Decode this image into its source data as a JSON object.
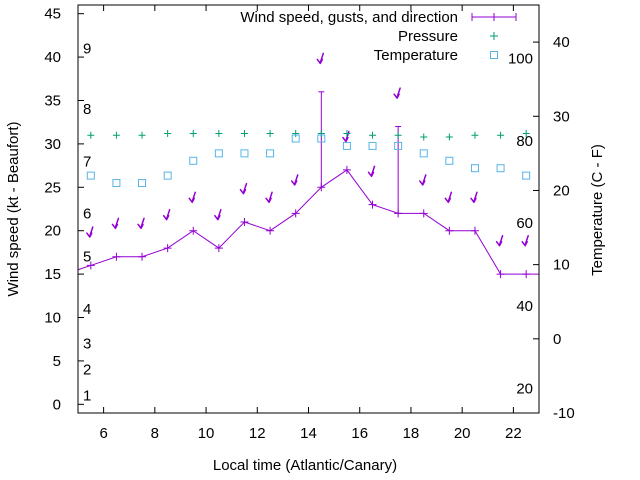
{
  "chart_data": {
    "type": "line",
    "title": "",
    "xlabel": "Local time (Atlantic/Canary)",
    "ylabel": "Wind speed (kt - Beaufort)",
    "y2label": "Temperature (C - F)",
    "xlim": [
      5,
      23
    ],
    "ylim": [
      -1,
      46
    ],
    "y2lim": [
      -10,
      45
    ],
    "xticks": [
      6,
      8,
      10,
      12,
      14,
      16,
      18,
      20,
      22
    ],
    "yticks": [
      0,
      5,
      10,
      15,
      20,
      25,
      30,
      35,
      40,
      45
    ],
    "y2ticks": [
      -10,
      0,
      10,
      20,
      30,
      40
    ],
    "beaufort_labels": [
      {
        "label": "1",
        "kt": 1
      },
      {
        "label": "2",
        "kt": 4
      },
      {
        "label": "3",
        "kt": 7
      },
      {
        "label": "4",
        "kt": 11
      },
      {
        "label": "5",
        "kt": 17
      },
      {
        "label": "6",
        "kt": 22
      },
      {
        "label": "7",
        "kt": 28
      },
      {
        "label": "8",
        "kt": 34
      },
      {
        "label": "9",
        "kt": 41
      }
    ],
    "fahrenheit_labels": [
      {
        "label": "20",
        "c": -6.7
      },
      {
        "label": "40",
        "c": 4.4
      },
      {
        "label": "60",
        "c": 15.6
      },
      {
        "label": "80",
        "c": 26.7
      },
      {
        "label": "100",
        "c": 37.8
      }
    ],
    "legend": [
      "Wind speed, gusts, and direction",
      "Pressure",
      "Temperature"
    ],
    "legend_position": "top-right",
    "colors": {
      "wind": "#9400d3",
      "pressure": "#009e73",
      "temperature": "#56b4e9"
    },
    "series": [
      {
        "name": "Wind speed, gusts, and direction",
        "axis": "left",
        "points": [
          {
            "x": 5.0,
            "y": 15.5
          },
          {
            "x": 5.5,
            "y": 16,
            "dir_y": 19.5
          },
          {
            "x": 6.5,
            "y": 17,
            "dir_y": 20.5
          },
          {
            "x": 7.5,
            "y": 17,
            "dir_y": 20.5
          },
          {
            "x": 8.5,
            "y": 18,
            "dir_y": 21.5
          },
          {
            "x": 9.5,
            "y": 20,
            "dir_y": 23.5
          },
          {
            "x": 10.5,
            "y": 18,
            "dir_y": 21.5
          },
          {
            "x": 11.5,
            "y": 21,
            "dir_y": 24.5
          },
          {
            "x": 12.5,
            "y": 20,
            "dir_y": 23.5
          },
          {
            "x": 13.5,
            "y": 22,
            "dir_y": 25.5
          },
          {
            "x": 14.5,
            "y": 25,
            "gust": 36,
            "dir_y": 39.5
          },
          {
            "x": 15.5,
            "y": 27,
            "dir_y": 30.5
          },
          {
            "x": 16.5,
            "y": 23,
            "dir_y": 26.5
          },
          {
            "x": 17.5,
            "y": 22,
            "gust": 32,
            "dir_y": 35.5
          },
          {
            "x": 18.5,
            "y": 22,
            "dir_y": 25.5
          },
          {
            "x": 19.5,
            "y": 20,
            "dir_y": 23.5
          },
          {
            "x": 20.5,
            "y": 20,
            "dir_y": 23.5
          },
          {
            "x": 21.5,
            "y": 15,
            "dir_y": 18.5
          },
          {
            "x": 22.5,
            "y": 15,
            "dir_y": 18.5
          },
          {
            "x": 23.0,
            "y": 15
          }
        ]
      },
      {
        "name": "Pressure",
        "axis": "left",
        "points": [
          {
            "x": 5.5,
            "y": 31
          },
          {
            "x": 6.5,
            "y": 31
          },
          {
            "x": 7.5,
            "y": 31
          },
          {
            "x": 8.5,
            "y": 31.2
          },
          {
            "x": 9.5,
            "y": 31.2
          },
          {
            "x": 10.5,
            "y": 31.2
          },
          {
            "x": 11.5,
            "y": 31.2
          },
          {
            "x": 12.5,
            "y": 31.2
          },
          {
            "x": 13.5,
            "y": 31.2
          },
          {
            "x": 14.5,
            "y": 31.2
          },
          {
            "x": 15.5,
            "y": 31.2
          },
          {
            "x": 16.5,
            "y": 31
          },
          {
            "x": 17.5,
            "y": 31
          },
          {
            "x": 18.5,
            "y": 30.8
          },
          {
            "x": 19.5,
            "y": 30.8
          },
          {
            "x": 20.5,
            "y": 31
          },
          {
            "x": 21.5,
            "y": 31
          },
          {
            "x": 22.5,
            "y": 31.2
          }
        ]
      },
      {
        "name": "Temperature",
        "axis": "right",
        "points": [
          {
            "x": 5.5,
            "y": 22
          },
          {
            "x": 6.5,
            "y": 21
          },
          {
            "x": 7.5,
            "y": 21
          },
          {
            "x": 8.5,
            "y": 22
          },
          {
            "x": 9.5,
            "y": 24
          },
          {
            "x": 10.5,
            "y": 25
          },
          {
            "x": 11.5,
            "y": 25
          },
          {
            "x": 12.5,
            "y": 25
          },
          {
            "x": 13.5,
            "y": 27
          },
          {
            "x": 14.5,
            "y": 27
          },
          {
            "x": 15.5,
            "y": 26
          },
          {
            "x": 16.5,
            "y": 26
          },
          {
            "x": 17.5,
            "y": 26
          },
          {
            "x": 18.5,
            "y": 25
          },
          {
            "x": 19.5,
            "y": 24
          },
          {
            "x": 20.5,
            "y": 23
          },
          {
            "x": 21.5,
            "y": 23
          },
          {
            "x": 22.5,
            "y": 22
          }
        ]
      }
    ]
  }
}
